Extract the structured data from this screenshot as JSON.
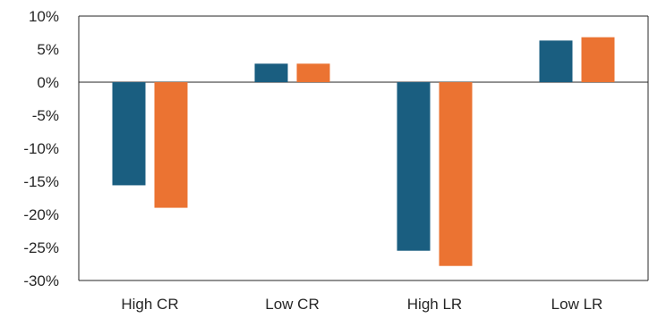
{
  "chart_data": {
    "type": "bar",
    "title": "",
    "xlabel": "",
    "ylabel": "",
    "categories": [
      "High CR",
      "Low CR",
      "High LR",
      "Low LR"
    ],
    "series": [
      {
        "values": [
          -15.6,
          2.8,
          -25.5,
          6.3
        ],
        "color": "#1a5e80"
      },
      {
        "values": [
          -19.0,
          2.8,
          -27.8,
          6.8
        ],
        "color": "#eb7332"
      }
    ],
    "ylim": [
      -30,
      10
    ],
    "yticks": [
      10,
      5,
      0,
      -5,
      -10,
      -15,
      -20,
      -25,
      -30
    ],
    "ytick_labels": [
      "10%",
      "5%",
      "0%",
      "-5%",
      "-10%",
      "-15%",
      "-20%",
      "-25%",
      "-30%"
    ],
    "grid": false,
    "legend": "none"
  }
}
